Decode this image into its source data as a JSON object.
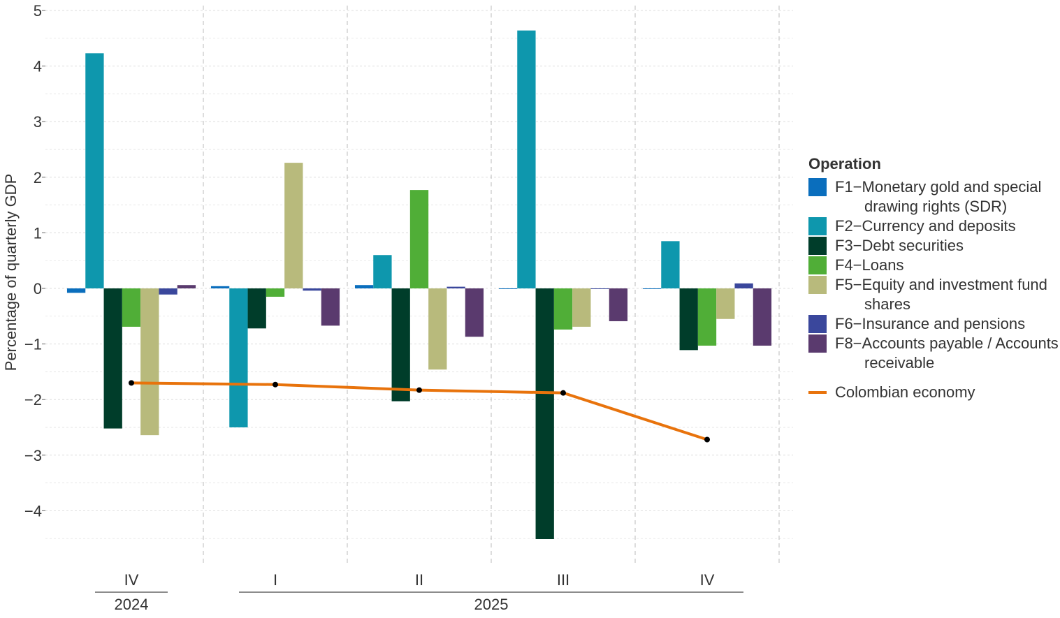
{
  "chart_data": {
    "type": "bar",
    "ylabel": "Percentage of quarterly GDP",
    "ylim": [
      -4.8,
      5.05
    ],
    "yticks": [
      -4,
      -3,
      -2,
      -1,
      0,
      1,
      2,
      3,
      4,
      5
    ],
    "ytick_labels": [
      "−4",
      "−3",
      "−2",
      "−1",
      "0",
      "1",
      "2",
      "3",
      "4",
      "5"
    ],
    "grid": true,
    "categories": [
      "IV",
      "I",
      "II",
      "III",
      "IV"
    ],
    "year_groups": [
      {
        "label": "2024",
        "span": [
          0,
          0
        ]
      },
      {
        "label": "2025",
        "span": [
          1,
          4
        ]
      }
    ],
    "legend_title": "Operation",
    "legend_position": "right",
    "series": [
      {
        "name": "F1−Monetary gold and special drawing rights (SDR)",
        "color": "#0a6ebd",
        "values": [
          -0.08,
          0.04,
          0.06,
          -0.01,
          -0.01
        ]
      },
      {
        "name": "F2−Currency and deposits",
        "color": "#0e97ad",
        "values": [
          4.23,
          -2.5,
          0.6,
          4.64,
          0.85
        ]
      },
      {
        "name": "F3−Debt securities",
        "color": "#003d2a",
        "values": [
          -2.52,
          -0.72,
          -2.03,
          -4.51,
          -1.11
        ]
      },
      {
        "name": "F4−Loans",
        "color": "#50ae37",
        "values": [
          -0.69,
          -0.15,
          1.77,
          -0.74,
          -1.03
        ]
      },
      {
        "name": "F5−Equity and investment fund shares",
        "color": "#b8ba7c",
        "values": [
          -2.64,
          2.26,
          -1.46,
          -0.69,
          -0.55
        ]
      },
      {
        "name": "F6−Insurance and pensions",
        "color": "#3a479c",
        "values": [
          -0.11,
          -0.04,
          0.03,
          -0.01,
          0.09
        ]
      },
      {
        "name": "F8−Accounts payable / Accounts receivable",
        "color": "#5a3a6e",
        "values": [
          0.06,
          -0.67,
          -0.87,
          -0.59,
          -1.03
        ]
      }
    ],
    "line_series": {
      "name": "Colombian economy",
      "color": "#e8730c",
      "values": [
        -1.7,
        -1.73,
        -1.83,
        -1.88,
        -2.72
      ]
    }
  }
}
